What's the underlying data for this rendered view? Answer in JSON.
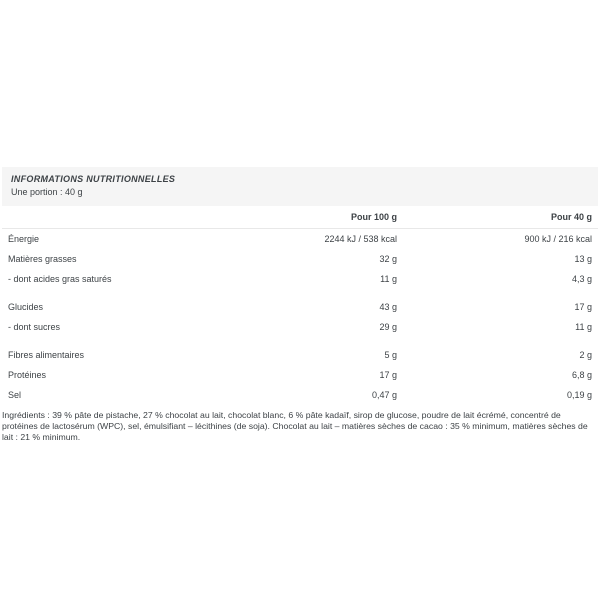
{
  "header": {
    "title": "INFORMATIONS NUTRITIONNELLES",
    "portion": "Une portion : 40 g"
  },
  "table": {
    "columns": {
      "per100": "Pour 100 g",
      "per40": "Pour 40 g"
    },
    "rows": [
      {
        "label": "Énergie",
        "per100": "2244 kJ / 538 kcal",
        "per40": "900 kJ / 216 kcal"
      },
      {
        "label": "Matières grasses",
        "per100": "32 g",
        "per40": "13 g"
      },
      {
        "label": "- dont acides gras saturés",
        "per100": "11 g",
        "per40": "4,3 g"
      },
      {
        "label": "Glucides",
        "per100": "43 g",
        "per40": "17 g"
      },
      {
        "label": "- dont sucres",
        "per100": "29 g",
        "per40": "11 g"
      },
      {
        "label": "Fibres alimentaires",
        "per100": "5 g",
        "per40": "2 g"
      },
      {
        "label": "Protéines",
        "per100": "17 g",
        "per40": "6,8 g"
      },
      {
        "label": "Sel",
        "per100": "0,47 g",
        "per40": "0,19 g"
      }
    ]
  },
  "ingredients": "Ingrédients : 39 % pâte de pistache, 27 % chocolat au lait, chocolat blanc, 6 % pâte kadaïf, sirop de glucose, poudre de lait écrémé, concentré de protéines de lactosérum (WPC), sel, émulsifiant – lécithines (de soja). Chocolat au lait – matières sèches de cacao : 35 % minimum, matières sèches de lait : 21 % minimum.",
  "colors": {
    "band_background": "#f5f5f5",
    "text": "#3d4246",
    "divider": "#e8e8e8"
  }
}
